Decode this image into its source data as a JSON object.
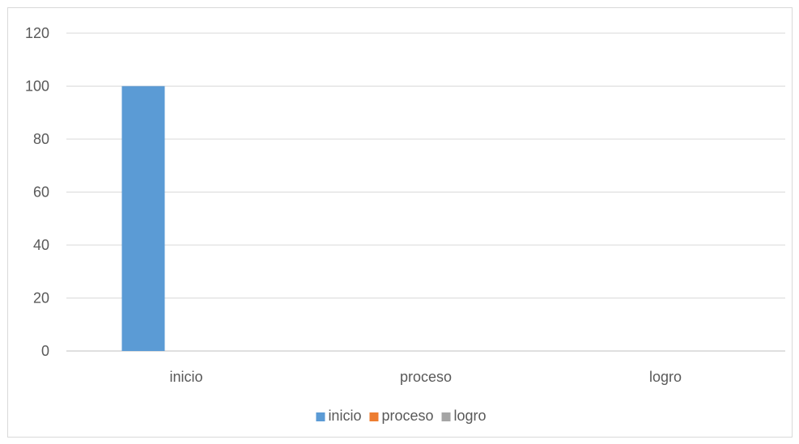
{
  "chart_data": {
    "type": "bar",
    "categories": [
      "inicio",
      "proceso",
      "logro"
    ],
    "series": [
      {
        "name": "inicio",
        "values": [
          100,
          0,
          0
        ],
        "color": "#5B9BD5"
      },
      {
        "name": "proceso",
        "values": [
          0,
          0,
          0
        ],
        "color": "#ED7D31"
      },
      {
        "name": "logro",
        "values": [
          0,
          0,
          0
        ],
        "color": "#A5A5A5"
      }
    ],
    "ylim": [
      0,
      120
    ],
    "yticks": [
      0,
      20,
      40,
      60,
      80,
      100,
      120
    ],
    "grid": true,
    "legend_position": "bottom",
    "gridline_color": "#d9d9d9",
    "axis_color": "#bfbfbf"
  }
}
